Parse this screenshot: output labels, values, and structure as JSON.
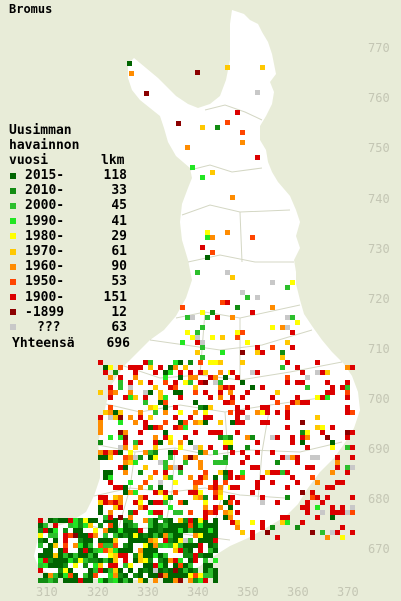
{
  "title": "Bromus",
  "legend": {
    "heading_line1": "Uusimman",
    "heading_line2": "havainnon",
    "heading_col1": "vuosi",
    "heading_col2": "lkm",
    "items": [
      {
        "label": "2015-",
        "count": "118",
        "color": "#006400"
      },
      {
        "label": "2010-",
        "count": "33",
        "color": "#128c12"
      },
      {
        "label": "2000-",
        "count": "45",
        "color": "#2cbf2c"
      },
      {
        "label": "1990-",
        "count": "41",
        "color": "#22e622"
      },
      {
        "label": "1980-",
        "count": "29",
        "color": "#ffff00"
      },
      {
        "label": "1970-",
        "count": "61",
        "color": "#ffc800"
      },
      {
        "label": "1960-",
        "count": "90",
        "color": "#ff8c00"
      },
      {
        "label": "1950-",
        "count": "53",
        "color": "#ff4500"
      },
      {
        "label": "1900-",
        "count": "151",
        "color": "#dc0000"
      },
      {
        "label": "-1899",
        "count": "12",
        "color": "#8b0000"
      },
      {
        "label": "???",
        "count": "63",
        "color": "#c8c8c8"
      }
    ],
    "total_label": "Yhteensä",
    "total_count": "696"
  },
  "axes": {
    "y_ticks": [
      "770",
      "760",
      "750",
      "740",
      "730",
      "720",
      "710",
      "700",
      "690",
      "680",
      "670"
    ],
    "x_ticks": [
      "310",
      "320",
      "330",
      "340",
      "350",
      "360",
      "370"
    ]
  },
  "colors": {
    "background": "#e8ecd8",
    "land": "#ffffff",
    "borders": "#d4d7c4",
    "axis_labels": "#c4c6b4"
  }
}
